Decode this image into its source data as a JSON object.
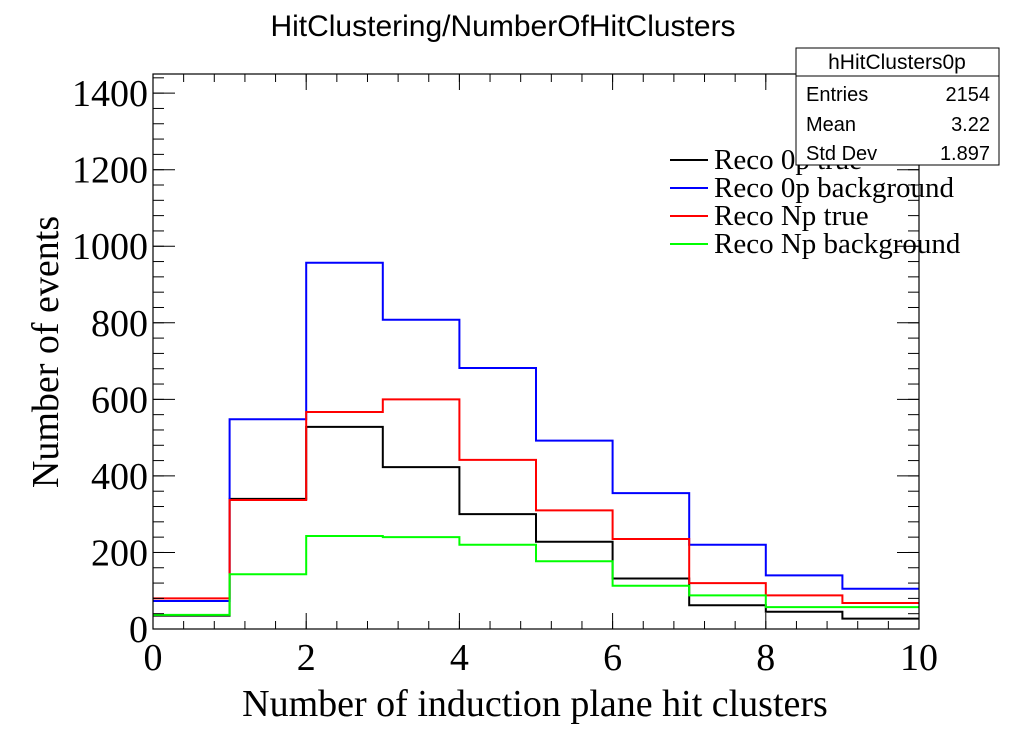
{
  "chart_data": {
    "type": "line",
    "title": "HitClustering/NumberOfHitClusters",
    "xlabel": "Number of induction plane hit clusters",
    "ylabel": "Number of events",
    "xlim": [
      0,
      10
    ],
    "ylim": [
      0,
      1450
    ],
    "x_ticks": [
      0,
      2,
      4,
      6,
      8,
      10
    ],
    "y_ticks": [
      0,
      200,
      400,
      600,
      800,
      1000,
      1200,
      1400
    ],
    "bin_edges": [
      0,
      1,
      2,
      3,
      4,
      5,
      6,
      7,
      8,
      9,
      10
    ],
    "grid": false,
    "legend_position": "top-right",
    "series": [
      {
        "name": "Reco 0p true",
        "color": "#000000",
        "values": [
          35,
          340,
          528,
          423,
          300,
          228,
          132,
          62,
          45,
          27
        ]
      },
      {
        "name": "Reco 0p background",
        "color": "#0000ff",
        "values": [
          73,
          548,
          957,
          808,
          682,
          492,
          355,
          220,
          140,
          105
        ]
      },
      {
        "name": "Reco Np true",
        "color": "#ff0000",
        "values": [
          80,
          337,
          567,
          600,
          442,
          310,
          235,
          120,
          88,
          68
        ]
      },
      {
        "name": "Reco Np background",
        "color": "#00ff00",
        "values": [
          37,
          143,
          243,
          240,
          220,
          177,
          113,
          88,
          57,
          57
        ]
      }
    ],
    "stats_box": {
      "name": "hHitClusters0p",
      "rows": [
        {
          "label": "Entries",
          "value": "2154"
        },
        {
          "label": "Mean",
          "value": "3.22"
        },
        {
          "label": "Std Dev",
          "value": "1.897"
        }
      ]
    }
  }
}
